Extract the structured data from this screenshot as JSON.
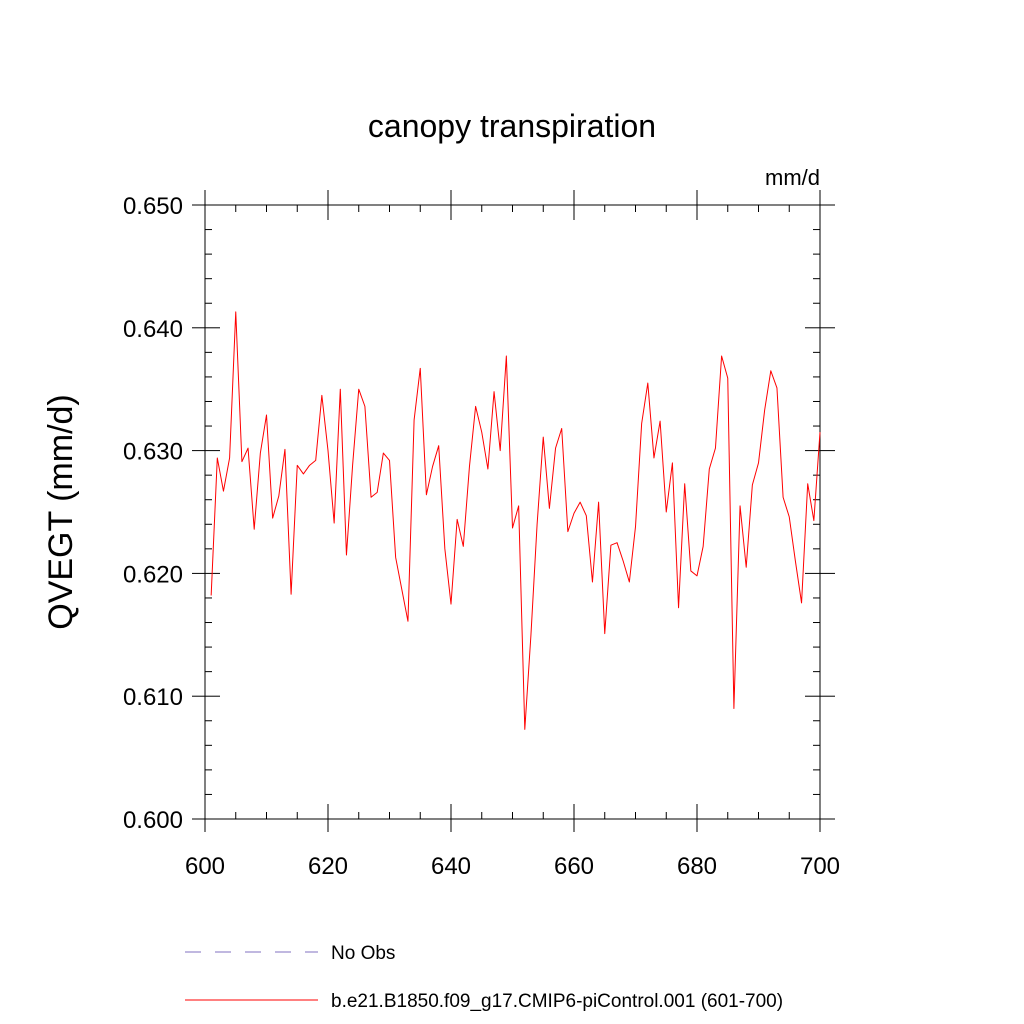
{
  "chart_data": {
    "type": "line",
    "title": "canopy transpiration",
    "units": "mm/d",
    "ylabel": "QVEGT  (mm/d)",
    "xlabel": "",
    "xlim": [
      600,
      700
    ],
    "ylim": [
      0.6,
      0.65
    ],
    "xticks": [
      600,
      620,
      640,
      660,
      680,
      700
    ],
    "xtick_labels": [
      "600",
      "620",
      "640",
      "660",
      "680",
      "700"
    ],
    "yticks": [
      0.6,
      0.61,
      0.62,
      0.63,
      0.64,
      0.65
    ],
    "ytick_labels": [
      "0.600",
      "0.610",
      "0.620",
      "0.630",
      "0.640",
      "0.650"
    ],
    "grid": false,
    "legend_position": "bottom",
    "series": [
      {
        "name": "No Obs",
        "color": "#8070c0",
        "dash": "dashed",
        "x": [],
        "values": []
      },
      {
        "name": "b.e21.B1850.f09_g17.CMIP6-piControl.001 (601-700)",
        "color": "#ff0000",
        "dash": "solid",
        "x": [
          601,
          602,
          603,
          604,
          605,
          606,
          607,
          608,
          609,
          610,
          611,
          612,
          613,
          614,
          615,
          616,
          617,
          618,
          619,
          620,
          621,
          622,
          623,
          624,
          625,
          626,
          627,
          628,
          629,
          630,
          631,
          632,
          633,
          634,
          635,
          636,
          637,
          638,
          639,
          640,
          641,
          642,
          643,
          644,
          645,
          646,
          647,
          648,
          649,
          650,
          651,
          652,
          653,
          654,
          655,
          656,
          657,
          658,
          659,
          660,
          661,
          662,
          663,
          664,
          665,
          666,
          667,
          668,
          669,
          670,
          671,
          672,
          673,
          674,
          675,
          676,
          677,
          678,
          679,
          680,
          681,
          682,
          683,
          684,
          685,
          686,
          687,
          688,
          689,
          690,
          691,
          692,
          693,
          694,
          695,
          696,
          697,
          698,
          699,
          700
        ],
        "values": [
          0.6182,
          0.6294,
          0.6267,
          0.6294,
          0.6413,
          0.6291,
          0.6302,
          0.6236,
          0.6298,
          0.6329,
          0.6245,
          0.6263,
          0.6301,
          0.6183,
          0.6288,
          0.6281,
          0.6288,
          0.6292,
          0.6345,
          0.63,
          0.6241,
          0.635,
          0.6215,
          0.6288,
          0.635,
          0.6336,
          0.6262,
          0.6266,
          0.6298,
          0.6292,
          0.6213,
          0.6187,
          0.6161,
          0.6325,
          0.6367,
          0.6264,
          0.6287,
          0.6304,
          0.622,
          0.6175,
          0.6244,
          0.6222,
          0.6287,
          0.6336,
          0.6315,
          0.6285,
          0.6348,
          0.63,
          0.6377,
          0.6237,
          0.6255,
          0.6073,
          0.615,
          0.624,
          0.6311,
          0.6253,
          0.6302,
          0.6318,
          0.6234,
          0.6249,
          0.6258,
          0.6247,
          0.6193,
          0.6258,
          0.6151,
          0.6223,
          0.6225,
          0.621,
          0.6193,
          0.6238,
          0.6322,
          0.6355,
          0.6294,
          0.6324,
          0.625,
          0.629,
          0.6172,
          0.6273,
          0.6202,
          0.6198,
          0.6222,
          0.6285,
          0.6302,
          0.6377,
          0.6359,
          0.609,
          0.6255,
          0.6205,
          0.6272,
          0.629,
          0.6333,
          0.6365,
          0.6351,
          0.6262,
          0.6246,
          0.621,
          0.6176,
          0.6273,
          0.6243,
          0.6315
        ]
      }
    ]
  }
}
